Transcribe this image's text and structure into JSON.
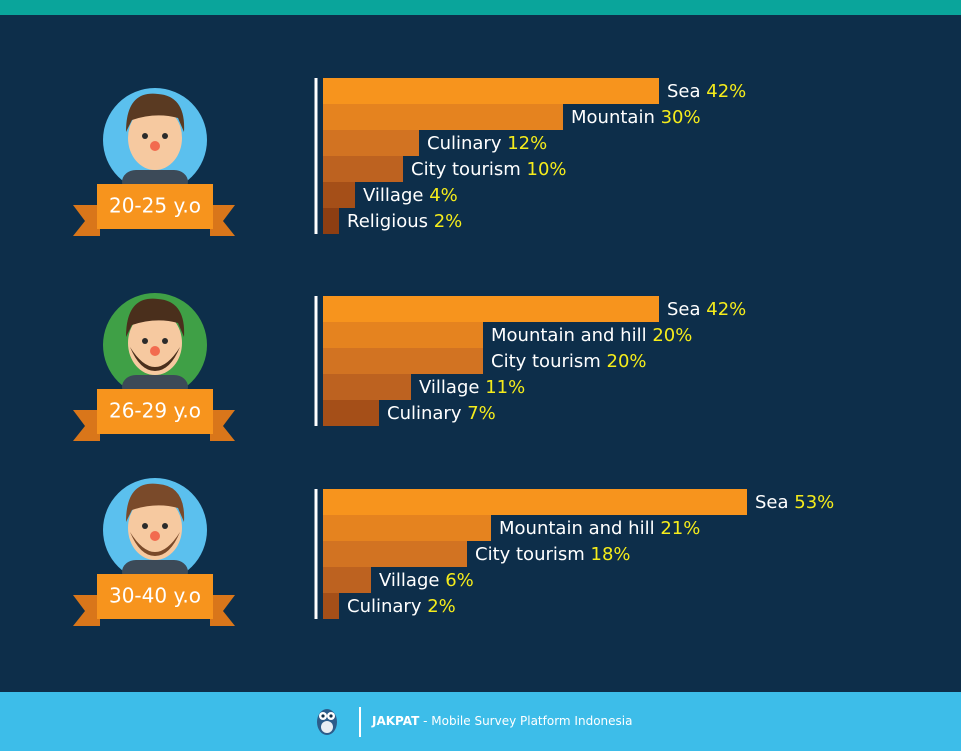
{
  "chart_data": [
    {
      "type": "bar",
      "title": "20-25 y.o",
      "categories": [
        "Sea",
        "Mountain",
        "Culinary",
        "City tourism",
        "Village",
        "Religious"
      ],
      "values": [
        42,
        30,
        12,
        10,
        4,
        2
      ],
      "value_labels": [
        "42%",
        "30%",
        "12%",
        "10%",
        "4%",
        "2%"
      ],
      "colors": [
        "#f7941d",
        "#e5831f",
        "#d27322",
        "#bd6220",
        "#a54f18",
        "#8d3e12"
      ]
    },
    {
      "type": "bar",
      "title": "26-29 y.o",
      "categories": [
        "Sea",
        "Mountain and hill",
        "City tourism",
        "Village",
        "Culinary"
      ],
      "values": [
        42,
        20,
        20,
        11,
        7
      ],
      "value_labels": [
        "42%",
        "20%",
        "20%",
        "11%",
        "7%"
      ],
      "colors": [
        "#f7941d",
        "#e5831f",
        "#d27322",
        "#bd6220",
        "#a54f18"
      ]
    },
    {
      "type": "bar",
      "title": "30-40 y.o",
      "categories": [
        "Sea",
        "Mountain and hill",
        "City tourism",
        "Village",
        "Culinary"
      ],
      "values": [
        53,
        21,
        18,
        6,
        2
      ],
      "value_labels": [
        "53%",
        "21%",
        "18%",
        "6%",
        "2%"
      ],
      "colors": [
        "#f7941d",
        "#e5831f",
        "#d27322",
        "#bd6220",
        "#a54f18"
      ]
    }
  ],
  "footer": {
    "brand": "JAKPAT",
    "tagline": "- Mobile Survey Platform Indonesia"
  }
}
